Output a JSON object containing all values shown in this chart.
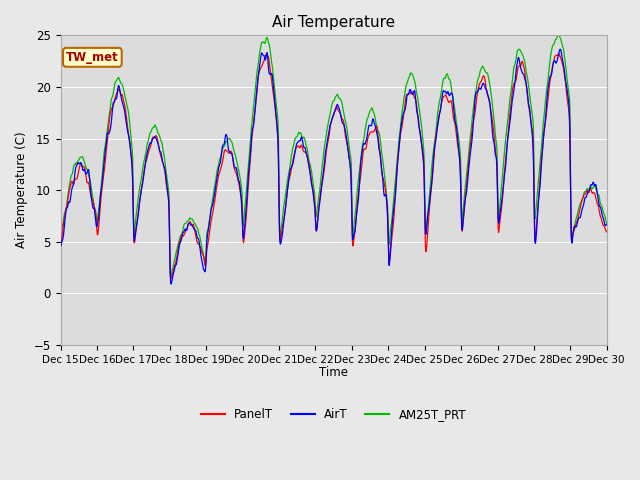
{
  "title": "Air Temperature",
  "ylabel": "Air Temperature (C)",
  "xlabel": "Time",
  "ylim": [
    -5,
    25
  ],
  "fig_width": 6.4,
  "fig_height": 4.8,
  "dpi": 100,
  "bg_color": "#e8e8e8",
  "plot_bg_color": "#dcdcdc",
  "grid_color": "#ffffff",
  "annotation_text": "TW_met",
  "annotation_facecolor": "#ffffcc",
  "annotation_edgecolor": "#bb6600",
  "annotation_textcolor": "#aa0000",
  "legend_labels": [
    "PanelT",
    "AirT",
    "AM25T_PRT"
  ],
  "legend_colors": [
    "red",
    "blue",
    "#00bb00"
  ],
  "x_tick_labels": [
    "Dec 15",
    "Dec 16",
    "Dec 17",
    "Dec 18",
    "Dec 19",
    "Dec 20",
    "Dec 21",
    "Dec 22",
    "Dec 23",
    "Dec 24",
    "Dec 25",
    "Dec 26",
    "Dec 27",
    "Dec 28",
    "Dec 29",
    "Dec 30"
  ],
  "yticks": [
    -5,
    0,
    5,
    10,
    15,
    20,
    25
  ],
  "n_points": 1440,
  "seed": 12345
}
